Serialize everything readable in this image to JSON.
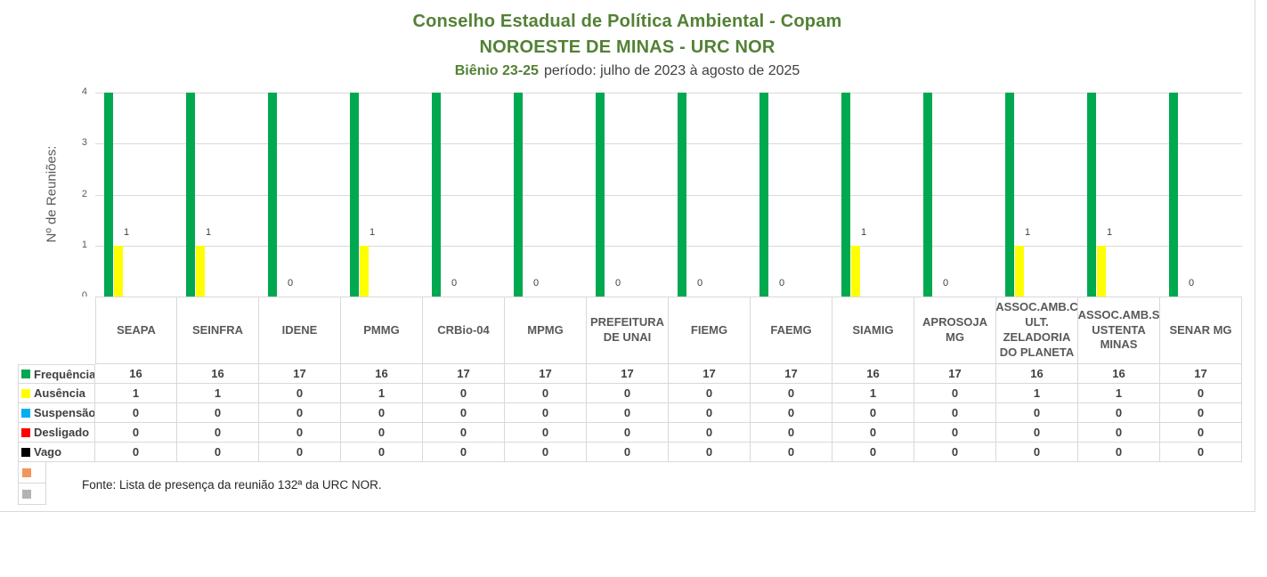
{
  "colors": {
    "chart_border": "#D9D9D9",
    "tick_text": "#595959",
    "header_text": "#595959",
    "value_text": "#404040",
    "title_green": "#538135",
    "period_text": "#404040",
    "footer_text": "#262626"
  },
  "chart_data": {
    "type": "bar",
    "title": "Conselho Estadual de Política Ambiental - Copam",
    "subtitle": "NOROESTE DE MINAS - URC NOR",
    "period_label_bold": "Biênio 23-25",
    "period_label_rest": "período: julho de 2023 à agosto de 2025",
    "ylabel": "Nº de Reuniões:",
    "ylim": [
      0,
      4
    ],
    "yticks": [
      0,
      1,
      2,
      3,
      4
    ],
    "grid": true,
    "legend_position": "table-left",
    "categories": [
      "SEAPA",
      "SEINFRA",
      "IDENE",
      "PMMG",
      "CRBio-04",
      "MPMG",
      "PREFEITURA DE UNAI",
      "FIEMG",
      "FAEMG",
      "SIAMIG",
      "APROSOJA MG",
      "ASSOC.AMB.C ULT. ZELADORIA DO PLANETA",
      "ASSOC.AMB.S USTENTA MINAS",
      "SENAR MG"
    ],
    "series": [
      {
        "name": "Frequência",
        "color": "#00A850",
        "values": [
          16,
          16,
          17,
          16,
          17,
          17,
          17,
          17,
          17,
          16,
          17,
          16,
          16,
          17
        ],
        "data_labels": false
      },
      {
        "name": "Ausência",
        "color": "#FFFF00",
        "values": [
          1,
          1,
          0,
          1,
          0,
          0,
          0,
          0,
          0,
          1,
          0,
          1,
          1,
          0
        ],
        "data_labels": true
      },
      {
        "name": "Suspensão",
        "color": "#00B0F0",
        "values": [
          0,
          0,
          0,
          0,
          0,
          0,
          0,
          0,
          0,
          0,
          0,
          0,
          0,
          0
        ],
        "data_labels": false
      },
      {
        "name": "Desligado",
        "color": "#FF0000",
        "values": [
          0,
          0,
          0,
          0,
          0,
          0,
          0,
          0,
          0,
          0,
          0,
          0,
          0,
          0
        ],
        "data_labels": false
      },
      {
        "name": "Vago",
        "color": "#000000",
        "values": [
          0,
          0,
          0,
          0,
          0,
          0,
          0,
          0,
          0,
          0,
          0,
          0,
          0,
          0
        ],
        "data_labels": false
      }
    ],
    "extra_legend_swatches": [
      {
        "color": "#F0975A"
      },
      {
        "color": "#B3B3B3"
      }
    ],
    "bars_clipped_at_axis_max": true,
    "footer": "Fonte: Lista de presença da reunião 132ª da URC NOR."
  }
}
